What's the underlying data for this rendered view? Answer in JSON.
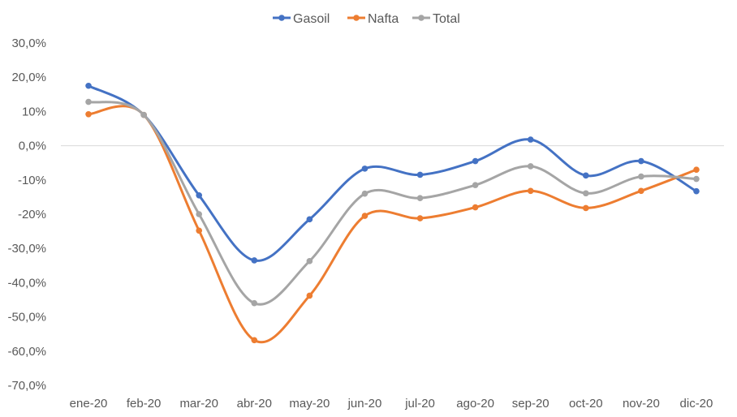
{
  "chart_data": {
    "type": "line",
    "categories": [
      "ene-20",
      "feb-20",
      "mar-20",
      "abr-20",
      "may-20",
      "jun-20",
      "jul-20",
      "ago-20",
      "sep-20",
      "oct-20",
      "nov-20",
      "dic-20"
    ],
    "series": [
      {
        "name": "Gasoil",
        "color": "#4472C4",
        "values": [
          17.5,
          9.0,
          -14.5,
          -33.5,
          -21.5,
          -6.7,
          -8.5,
          -4.5,
          1.8,
          -8.7,
          -4.5,
          -13.3
        ]
      },
      {
        "name": "Nafta",
        "color": "#ED7D31",
        "values": [
          9.2,
          9.0,
          -24.8,
          -56.8,
          -43.8,
          -20.5,
          -21.2,
          -18.0,
          -13.2,
          -18.2,
          -13.2,
          -7.0
        ]
      },
      {
        "name": "Total",
        "color": "#A5A5A5",
        "values": [
          12.8,
          9.0,
          -20.0,
          -46.0,
          -33.7,
          -14.0,
          -15.3,
          -11.5,
          -6.0,
          -13.9,
          -9.0,
          -9.7
        ]
      }
    ],
    "yticks": [
      30,
      20,
      10,
      0,
      -10,
      -20,
      -30,
      -40,
      -50,
      -60,
      -70
    ],
    "ytick_labels": [
      "30,0%",
      "20,0%",
      "10%",
      "0,0%",
      "-10%",
      "-20%",
      "-30,0%",
      "-40,0%",
      "-50,0%",
      "-60,0%",
      "-70,0%"
    ],
    "ylim": [
      -70,
      30
    ],
    "legend_position": "top",
    "grid": "zero-line only"
  }
}
